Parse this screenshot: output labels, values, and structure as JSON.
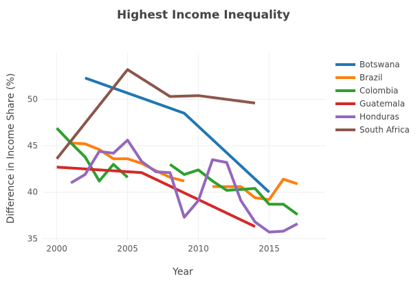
{
  "chart_data": {
    "type": "line",
    "title": "Highest Income Inequality",
    "xlabel": "Year",
    "ylabel": "Difference in Income Share (%)",
    "xlim": [
      1999,
      2019
    ],
    "ylim": [
      34.8,
      55
    ],
    "xticks": [
      2000,
      2005,
      2010,
      2015
    ],
    "xtick_labels": [
      "2000",
      "2005",
      "2010",
      "2015"
    ],
    "yticks": [
      35,
      40,
      45,
      50
    ],
    "ytick_labels": [
      "35",
      "40",
      "45",
      "50"
    ],
    "grid": true,
    "legend_position": "right",
    "series": [
      {
        "name": "Botswana",
        "color": "#1f77b4",
        "points": [
          [
            2002,
            52.3
          ],
          [
            2009,
            48.5
          ],
          [
            2015,
            40.0
          ]
        ]
      },
      {
        "name": "Brazil",
        "color": "#ff7f0e",
        "points": [
          [
            2001,
            45.3
          ],
          [
            2002,
            45.2
          ],
          [
            2003,
            44.6
          ],
          [
            2004,
            43.6
          ],
          [
            2005,
            43.6
          ],
          [
            2006,
            43.1
          ],
          [
            2007,
            42.3
          ],
          [
            2008,
            41.6
          ],
          [
            2009,
            41.2
          ],
          [
            null,
            null
          ],
          [
            2011,
            40.6
          ],
          [
            2012,
            40.6
          ],
          [
            2013,
            40.6
          ],
          [
            2014,
            39.4
          ],
          [
            2015,
            39.2
          ],
          [
            2016,
            41.4
          ],
          [
            2017,
            40.9
          ]
        ]
      },
      {
        "name": "Colombia",
        "color": "#2ca02c",
        "points": [
          [
            2000,
            46.9
          ],
          [
            2001,
            45.3
          ],
          [
            2002,
            43.8
          ],
          [
            2003,
            41.2
          ],
          [
            2004,
            43.0
          ],
          [
            2005,
            41.6
          ],
          [
            null,
            null
          ],
          [
            2008,
            43.0
          ],
          [
            2009,
            41.9
          ],
          [
            2010,
            42.4
          ],
          [
            2011,
            41.2
          ],
          [
            2012,
            40.2
          ],
          [
            2013,
            40.3
          ],
          [
            2014,
            40.4
          ],
          [
            2015,
            38.7
          ],
          [
            2016,
            38.7
          ],
          [
            2017,
            37.6
          ]
        ]
      },
      {
        "name": "Guatemala",
        "color": "#d62728",
        "points": [
          [
            2000,
            42.7
          ],
          [
            2006,
            42.1
          ],
          [
            2014,
            36.3
          ]
        ]
      },
      {
        "name": "Honduras",
        "color": "#9467bd",
        "points": [
          [
            2001,
            41.0
          ],
          [
            2002,
            41.9
          ],
          [
            2003,
            44.4
          ],
          [
            2004,
            44.2
          ],
          [
            2005,
            45.6
          ],
          [
            2006,
            43.3
          ],
          [
            2007,
            42.2
          ],
          [
            2008,
            42.1
          ],
          [
            2009,
            37.3
          ],
          [
            2010,
            39.1
          ],
          [
            2011,
            43.5
          ],
          [
            2012,
            43.2
          ],
          [
            2013,
            39.1
          ],
          [
            2014,
            36.8
          ],
          [
            2015,
            35.7
          ],
          [
            2016,
            35.8
          ],
          [
            2017,
            36.6
          ]
        ]
      },
      {
        "name": "South Africa",
        "color": "#8c564b",
        "points": [
          [
            2000,
            43.6
          ],
          [
            2005,
            53.2
          ],
          [
            2008,
            50.3
          ],
          [
            2010,
            50.4
          ],
          [
            2014,
            49.6
          ]
        ]
      }
    ]
  }
}
